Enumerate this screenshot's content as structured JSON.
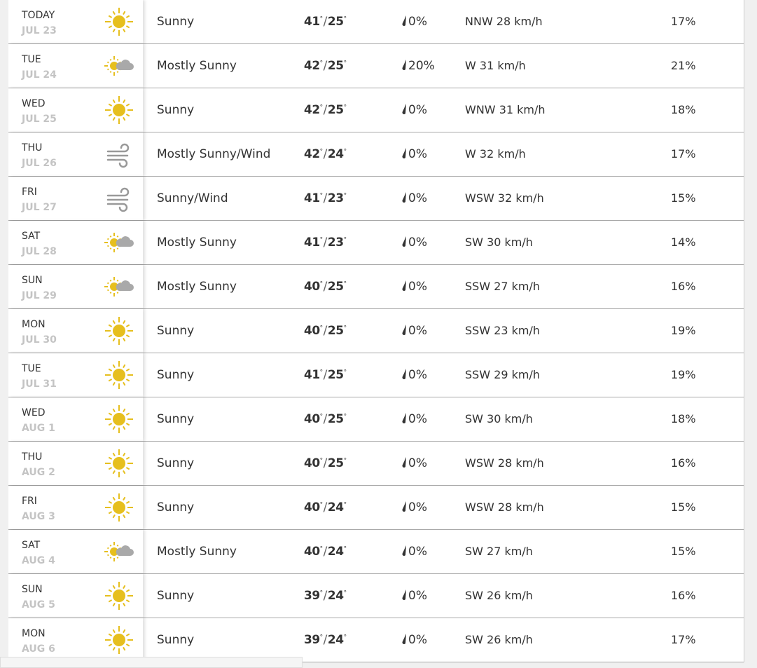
{
  "colors": {
    "sun": "#e6bf1e",
    "cloud": "#a9a9a9",
    "wind_icon": "#999999"
  },
  "forecast": [
    {
      "day": "TODAY",
      "date": "JUL 23",
      "icon": "sun-icon",
      "condition": "Sunny",
      "high": "41",
      "low": "25",
      "precip": "0%",
      "wind": "NNW 28 km/h",
      "humidity": "17%"
    },
    {
      "day": "TUE",
      "date": "JUL 24",
      "icon": "partly-cloudy-icon",
      "condition": "Mostly Sunny",
      "high": "42",
      "low": "25",
      "precip": "20%",
      "wind": "W 31 km/h",
      "humidity": "21%"
    },
    {
      "day": "WED",
      "date": "JUL 25",
      "icon": "sun-icon",
      "condition": "Sunny",
      "high": "42",
      "low": "25",
      "precip": "0%",
      "wind": "WNW 31 km/h",
      "humidity": "18%"
    },
    {
      "day": "THU",
      "date": "JUL 26",
      "icon": "wind-icon",
      "condition": "Mostly Sunny/Wind",
      "high": "42",
      "low": "24",
      "precip": "0%",
      "wind": "W 32 km/h",
      "humidity": "17%"
    },
    {
      "day": "FRI",
      "date": "JUL 27",
      "icon": "wind-icon",
      "condition": "Sunny/Wind",
      "high": "41",
      "low": "23",
      "precip": "0%",
      "wind": "WSW 32 km/h",
      "humidity": "15%"
    },
    {
      "day": "SAT",
      "date": "JUL 28",
      "icon": "partly-cloudy-icon",
      "condition": "Mostly Sunny",
      "high": "41",
      "low": "23",
      "precip": "0%",
      "wind": "SW 30 km/h",
      "humidity": "14%"
    },
    {
      "day": "SUN",
      "date": "JUL 29",
      "icon": "partly-cloudy-icon",
      "condition": "Mostly Sunny",
      "high": "40",
      "low": "25",
      "precip": "0%",
      "wind": "SSW 27 km/h",
      "humidity": "16%"
    },
    {
      "day": "MON",
      "date": "JUL 30",
      "icon": "sun-icon",
      "condition": "Sunny",
      "high": "40",
      "low": "25",
      "precip": "0%",
      "wind": "SSW 23 km/h",
      "humidity": "19%"
    },
    {
      "day": "TUE",
      "date": "JUL 31",
      "icon": "sun-icon",
      "condition": "Sunny",
      "high": "41",
      "low": "25",
      "precip": "0%",
      "wind": "SSW 29 km/h",
      "humidity": "19%"
    },
    {
      "day": "WED",
      "date": "AUG 1",
      "icon": "sun-icon",
      "condition": "Sunny",
      "high": "40",
      "low": "25",
      "precip": "0%",
      "wind": "SW 30 km/h",
      "humidity": "18%"
    },
    {
      "day": "THU",
      "date": "AUG 2",
      "icon": "sun-icon",
      "condition": "Sunny",
      "high": "40",
      "low": "25",
      "precip": "0%",
      "wind": "WSW 28 km/h",
      "humidity": "16%"
    },
    {
      "day": "FRI",
      "date": "AUG 3",
      "icon": "sun-icon",
      "condition": "Sunny",
      "high": "40",
      "low": "24",
      "precip": "0%",
      "wind": "WSW 28 km/h",
      "humidity": "15%"
    },
    {
      "day": "SAT",
      "date": "AUG 4",
      "icon": "partly-cloudy-icon",
      "condition": "Mostly Sunny",
      "high": "40",
      "low": "24",
      "precip": "0%",
      "wind": "SW 27 km/h",
      "humidity": "15%"
    },
    {
      "day": "SUN",
      "date": "AUG 5",
      "icon": "sun-icon",
      "condition": "Sunny",
      "high": "39",
      "low": "24",
      "precip": "0%",
      "wind": "SW 26 km/h",
      "humidity": "16%"
    },
    {
      "day": "MON",
      "date": "AUG 6",
      "icon": "sun-icon",
      "condition": "Sunny",
      "high": "39",
      "low": "24",
      "precip": "0%",
      "wind": "SW 26 km/h",
      "humidity": "17%"
    }
  ]
}
